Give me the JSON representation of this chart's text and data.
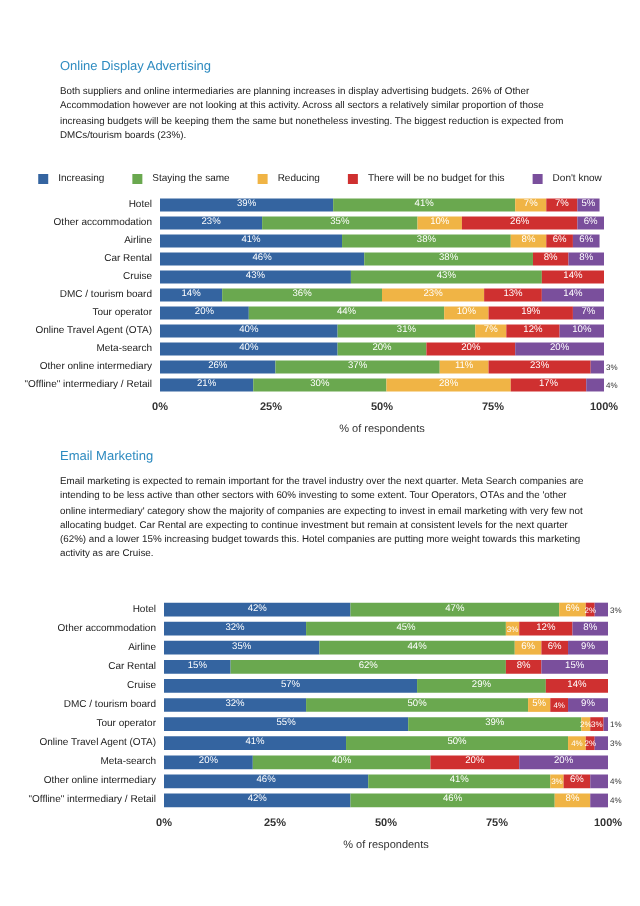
{
  "chart_data": [
    {
      "type": "bar",
      "orientation": "horizontal",
      "stacked": true,
      "title": "Online Display Advertising",
      "subtitle": "Both suppliers and online intermediaries are planning increases in display advertising budgets. 26% of Other Accommodation however are not looking at this activity. Across all sectors a relatively similar proportion of those increasing budgets will be keeping them the same but nonetheless investing. The biggest reduction is expected from DMCs/tourism boards (23%).",
      "xlabel": "% of respondents",
      "categories": [
        "Hotel",
        "Other accommodation",
        "Airline",
        "Car Rental",
        "Cruise",
        "DMC / tourism board",
        "Tour operator",
        "Online Travel Agent (OTA)",
        "Meta-search",
        "Other online intermediary",
        "\"Offline\" intermediary / Retail"
      ],
      "series": [
        {
          "name": "Increasing",
          "color": "#3464a0",
          "values": [
            39,
            23,
            41,
            46,
            43,
            14,
            20,
            40,
            40,
            26,
            21
          ],
          "value_labels": [
            "39%",
            "23%",
            "41%",
            "46%",
            "43%",
            "14%",
            "20%",
            "40%",
            "40%",
            "26%",
            "21%"
          ]
        },
        {
          "name": "Staying the same",
          "color": "#6aa84f",
          "values": [
            41,
            35,
            38,
            38,
            43,
            36,
            44,
            31,
            20,
            37,
            30
          ],
          "value_labels": [
            "41%",
            "35%",
            "38%",
            "38%",
            "43%",
            "36%",
            "44%",
            "31%",
            "20%",
            "37%",
            "30%"
          ]
        },
        {
          "name": "Reducing",
          "color": "#f0b445",
          "values": [
            7,
            10,
            8,
            null,
            null,
            23,
            10,
            7,
            null,
            11,
            28
          ],
          "value_labels": [
            "7%",
            "10%",
            "8%",
            null,
            null,
            "23%",
            "10%",
            "7%",
            null,
            "11%",
            "28%"
          ]
        },
        {
          "name": "There will be no budget for this",
          "color": "#cf3030",
          "values": [
            7,
            26,
            6,
            8,
            14,
            13,
            19,
            12,
            20,
            23,
            17
          ],
          "value_labels": [
            "7%",
            "26%",
            "6%",
            "8%",
            "14%",
            "13%",
            "19%",
            "12%",
            "20%",
            "23%",
            "17%"
          ]
        },
        {
          "name": "Don't know",
          "color": "#7a4f9c",
          "values": [
            5,
            6,
            6,
            8,
            null,
            14,
            7,
            10,
            20,
            3,
            4
          ],
          "value_labels": [
            "5%",
            "6%",
            "6%",
            "8%",
            null,
            "14%",
            "7%",
            "10%",
            "20%",
            "3%",
            "4%"
          ]
        }
      ],
      "xlim": [
        0,
        100
      ],
      "xticks": [
        {
          "value": 0,
          "label": "0%"
        },
        {
          "value": 25,
          "label": "25%"
        },
        {
          "value": 50,
          "label": "50%"
        },
        {
          "value": 75,
          "label": "75%"
        },
        {
          "value": 100,
          "label": "100%"
        }
      ],
      "legend": "top",
      "grid": false
    },
    {
      "type": "bar",
      "orientation": "horizontal",
      "stacked": true,
      "title": "Email Marketing",
      "subtitle": "Email marketing is expected to remain important for the travel industry over the next quarter. Meta Search companies are intending to be less active than other sectors with 60% investing to some extent. Tour Operators, OTAs and the 'other online intermediary' category show the majority of companies are expecting to invest in email marketing with very few not allocating budget. Car Rental are expecting to continue investment but remain at consistent levels for the next quarter (62%) and a lower 15% increasing budget towards this. Hotel companies are putting more weight towards this marketing activity as are Cruise.",
      "xlabel": "% of respondents",
      "categories": [
        "Hotel",
        "Other accommodation",
        "Airline",
        "Car Rental",
        "Cruise",
        "DMC / tourism board",
        "Tour operator",
        "Online Travel Agent (OTA)",
        "Meta-search",
        "Other online intermediary",
        "\"Offline\" intermediary / Retail"
      ],
      "series": [
        {
          "color": "#3464a0",
          "values": [
            42,
            32,
            35,
            15,
            57,
            32,
            55,
            41,
            20,
            46,
            42
          ],
          "value_labels": [
            "42%",
            "32%",
            "35%",
            "15%",
            "57%",
            "32%",
            "55%",
            "41%",
            "20%",
            "46%",
            "42%"
          ]
        },
        {
          "color": "#6aa84f",
          "values": [
            47,
            45,
            44,
            62,
            29,
            50,
            39,
            50,
            40,
            41,
            46
          ],
          "value_labels": [
            "47%",
            "45%",
            "44%",
            "62%",
            "29%",
            "50%",
            "39%",
            "50%",
            "40%",
            "41%",
            "46%"
          ]
        },
        {
          "color": "#f0b445",
          "values": [
            6,
            3,
            6,
            null,
            null,
            5,
            2,
            4,
            null,
            3,
            8
          ],
          "value_labels": [
            "6%",
            "3%",
            "6%",
            null,
            null,
            "5%",
            "2%",
            "4%",
            null,
            "3%",
            "8%"
          ]
        },
        {
          "color": "#cf3030",
          "values": [
            2,
            12,
            6,
            8,
            14,
            4,
            3,
            2,
            20,
            6,
            null
          ],
          "value_labels": [
            "2%",
            "12%",
            "6%",
            "8%",
            "14%",
            "4%",
            "3%",
            "2%",
            "20%",
            "6%",
            null
          ]
        },
        {
          "color": "#7a4f9c",
          "values": [
            3,
            8,
            9,
            15,
            null,
            9,
            1,
            3,
            20,
            4,
            4
          ],
          "value_labels": [
            "3%",
            "8%",
            "9%",
            "15%",
            null,
            "9%",
            "1%",
            "3%",
            "20%",
            "4%",
            "4%"
          ]
        }
      ],
      "xlim": [
        0,
        100
      ],
      "xticks": [
        {
          "value": 0,
          "label": "0%"
        },
        {
          "value": 25,
          "label": "25%"
        },
        {
          "value": 50,
          "label": "50%"
        },
        {
          "value": 75,
          "label": "75%"
        },
        {
          "value": 100,
          "label": "100%"
        }
      ],
      "legend": false,
      "grid": false
    }
  ]
}
